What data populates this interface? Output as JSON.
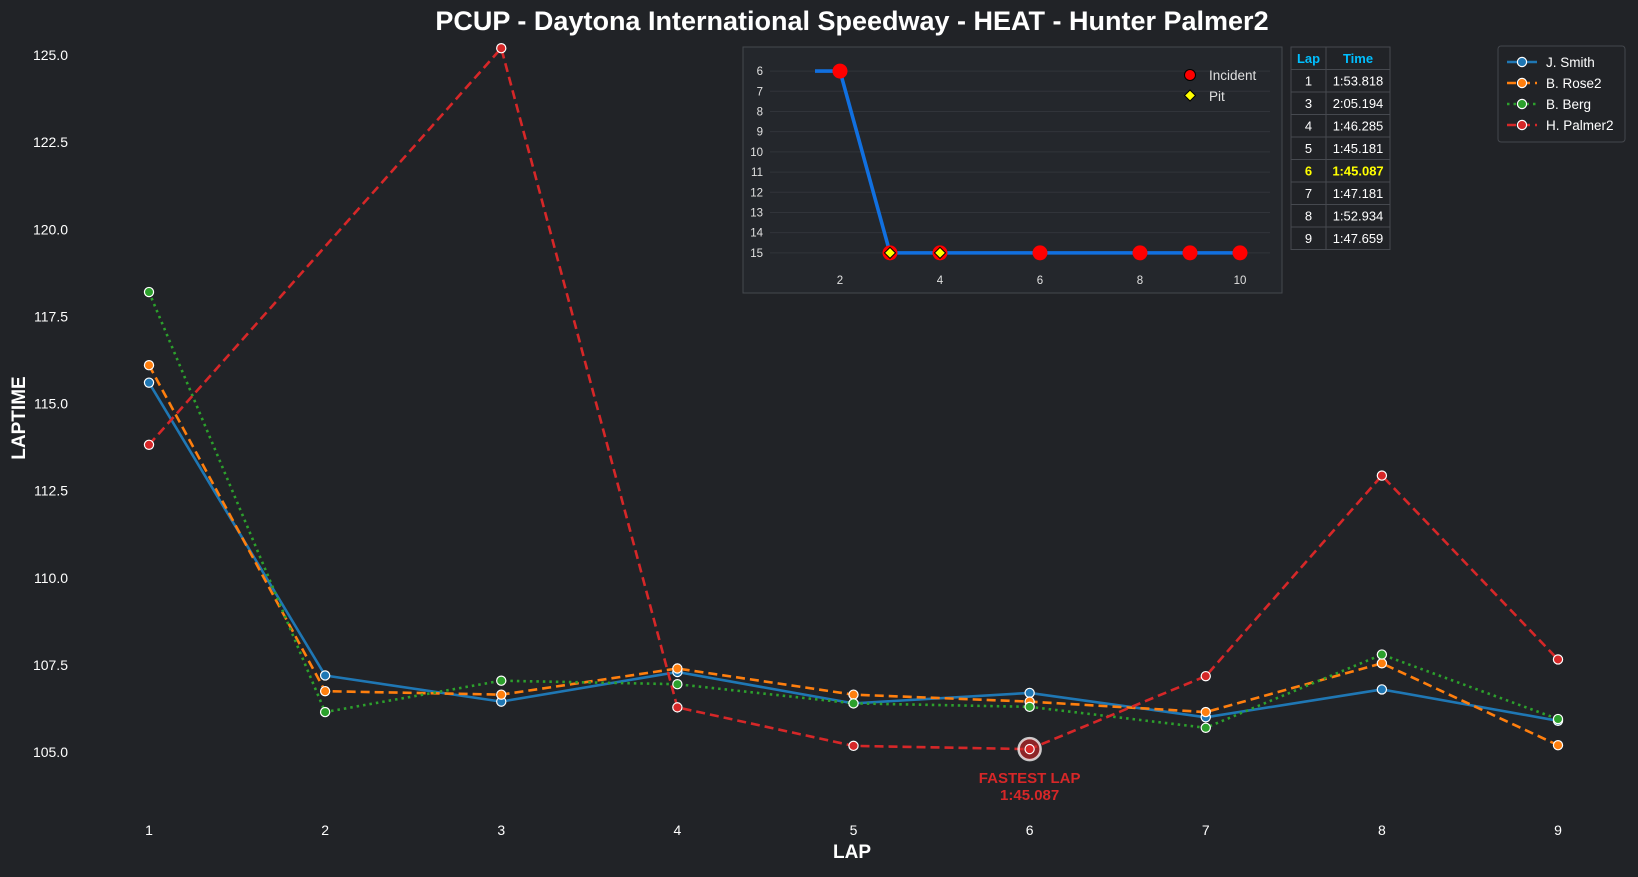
{
  "chart_data": [
    {
      "id": "laptimes",
      "type": "line",
      "title": "PCUP - Daytona International Speedway - HEAT - Hunter Palmer2",
      "xlabel": "LAP",
      "ylabel": "LAPTIME",
      "x": [
        1,
        2,
        3,
        4,
        5,
        6,
        7,
        8,
        9
      ],
      "xlim": [
        0.5,
        9.5
      ],
      "ylim": [
        103.8,
        125.2
      ],
      "yticks": [
        "105.0",
        "107.5",
        "110.0",
        "112.5",
        "115.0",
        "117.5",
        "120.0",
        "122.5",
        "125.0"
      ],
      "ytick_values": [
        105.0,
        107.5,
        110.0,
        112.5,
        115.0,
        117.5,
        120.0,
        122.5,
        125.0
      ],
      "xticks": [
        "1",
        "2",
        "3",
        "4",
        "5",
        "6",
        "7",
        "8",
        "9"
      ],
      "grid": false,
      "legend_position": "top-right",
      "series": [
        {
          "name": "J. Smith",
          "color": "#1f77b4",
          "dash": "solid",
          "values": [
            115.6,
            107.2,
            106.45,
            107.3,
            106.4,
            106.7,
            106.0,
            106.8,
            105.9
          ]
        },
        {
          "name": "B. Rose2",
          "color": "#ff7f0e",
          "dash": "dashed",
          "values": [
            116.1,
            106.75,
            106.65,
            107.4,
            106.65,
            106.45,
            106.15,
            107.55,
            105.2
          ]
        },
        {
          "name": "B. Berg",
          "color": "#2ca02c",
          "dash": "dotted",
          "values": [
            118.2,
            106.15,
            107.05,
            106.95,
            106.4,
            106.3,
            105.7,
            107.8,
            105.95
          ]
        },
        {
          "name": "H. Palmer2",
          "color": "#d62728",
          "dash": "dashed",
          "values": [
            113.818,
            null,
            125.194,
            106.285,
            105.181,
            105.087,
            107.181,
            112.934,
            107.659
          ],
          "connect_from": [
            1,
            113.818
          ],
          "connect_to": [
            3,
            125.194
          ]
        }
      ],
      "annotation": {
        "label": "FASTEST LAP",
        "value": "1:45.087",
        "lap": 6,
        "laptime": 105.087,
        "color": "#d62728"
      }
    },
    {
      "id": "position_inset",
      "type": "line",
      "x": [
        1,
        2,
        3,
        4,
        5,
        6,
        7,
        8,
        9,
        10
      ],
      "values": [
        6,
        6,
        15,
        15,
        15,
        15,
        15,
        15,
        15,
        15
      ],
      "line_from": 1.5,
      "ylim": [
        15.6,
        5.6
      ],
      "yticks": [
        "6",
        "7",
        "8",
        "9",
        "10",
        "11",
        "12",
        "13",
        "14",
        "15"
      ],
      "ytick_values": [
        6,
        7,
        8,
        9,
        10,
        11,
        12,
        13,
        14,
        15
      ],
      "xticks": [
        "2",
        "4",
        "6",
        "8",
        "10"
      ],
      "xtick_values": [
        2,
        4,
        6,
        8,
        10
      ],
      "xlim": [
        0.6,
        10.6
      ],
      "line_color": "#1170e0",
      "incidents": [
        [
          2,
          6
        ],
        [
          3,
          15
        ],
        [
          4,
          15
        ],
        [
          6,
          15
        ],
        [
          8,
          15
        ],
        [
          9,
          15
        ],
        [
          10,
          15
        ]
      ],
      "pits": [
        [
          3,
          15
        ],
        [
          4,
          15
        ]
      ],
      "incident_color": "#ff0000",
      "pit_color": "#ffff00",
      "legend": [
        "Incident",
        "Pit"
      ],
      "legend_position": "top-right"
    },
    {
      "id": "laptime_table",
      "type": "table",
      "columns": [
        "Lap",
        "Time"
      ],
      "rows": [
        [
          "1",
          "1:53.818"
        ],
        [
          "3",
          "2:05.194"
        ],
        [
          "4",
          "1:46.285"
        ],
        [
          "5",
          "1:45.181"
        ],
        [
          "6",
          "1:45.087"
        ],
        [
          "7",
          "1:47.181"
        ],
        [
          "8",
          "1:52.934"
        ],
        [
          "9",
          "1:47.659"
        ]
      ],
      "highlight_row": 4,
      "header_color": "#00bfff",
      "highlight_color": "#ffff00"
    }
  ]
}
